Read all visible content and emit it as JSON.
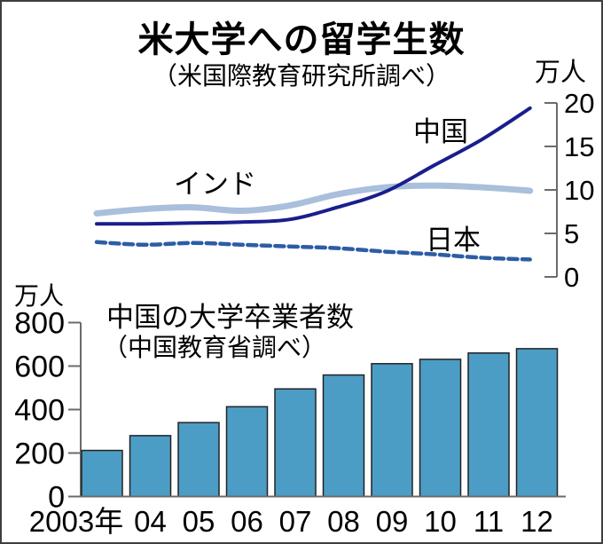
{
  "colors": {
    "axis": "#6b6b6b",
    "text": "#000000"
  },
  "chart_data": [
    {
      "type": "line",
      "title": "米大学への留学生数",
      "subtitle": "（米国際教育研究所調べ）",
      "unit_label": "万人",
      "x": [
        "2003",
        "04",
        "05",
        "06",
        "07",
        "08",
        "09",
        "10",
        "11",
        "12"
      ],
      "series": [
        {
          "name": "中国",
          "color": "#1a1e8c",
          "width": 4,
          "dash": "",
          "values": [
            6.1,
            6.1,
            6.2,
            6.3,
            6.6,
            8.0,
            9.8,
            12.8,
            15.8,
            19.4
          ]
        },
        {
          "name": "インド",
          "color": "#a9bfdc",
          "width": 7,
          "dash": "",
          "values": [
            7.3,
            7.8,
            8.0,
            7.6,
            8.2,
            9.5,
            10.3,
            10.5,
            10.3,
            9.9
          ]
        },
        {
          "name": "日本",
          "color": "#2d5da4",
          "width": 4.5,
          "dash": "10 5.5",
          "values": [
            4.0,
            3.7,
            3.9,
            3.7,
            3.5,
            3.3,
            2.9,
            2.6,
            2.2,
            2.0
          ]
        }
      ],
      "ylim": [
        0,
        20
      ],
      "yticks": [
        20,
        15,
        10,
        5,
        0
      ],
      "axis_side": "right",
      "grid": false,
      "legend_position": "inline-labels"
    },
    {
      "type": "bar",
      "title": "中国の大学卒業者数",
      "subtitle": "（中国教育省調べ）",
      "unit_label": "万人",
      "categories": [
        "2003年",
        "04",
        "05",
        "06",
        "07",
        "08",
        "09",
        "10",
        "11",
        "12"
      ],
      "values": [
        212,
        280,
        340,
        413,
        495,
        559,
        611,
        631,
        660,
        680
      ],
      "bar_color": "#4c9dc5",
      "bar_stroke": "#222222",
      "ylim": [
        0,
        800
      ],
      "yticks": [
        800,
        600,
        400,
        200,
        0
      ],
      "axis_side": "left",
      "grid": false
    }
  ]
}
